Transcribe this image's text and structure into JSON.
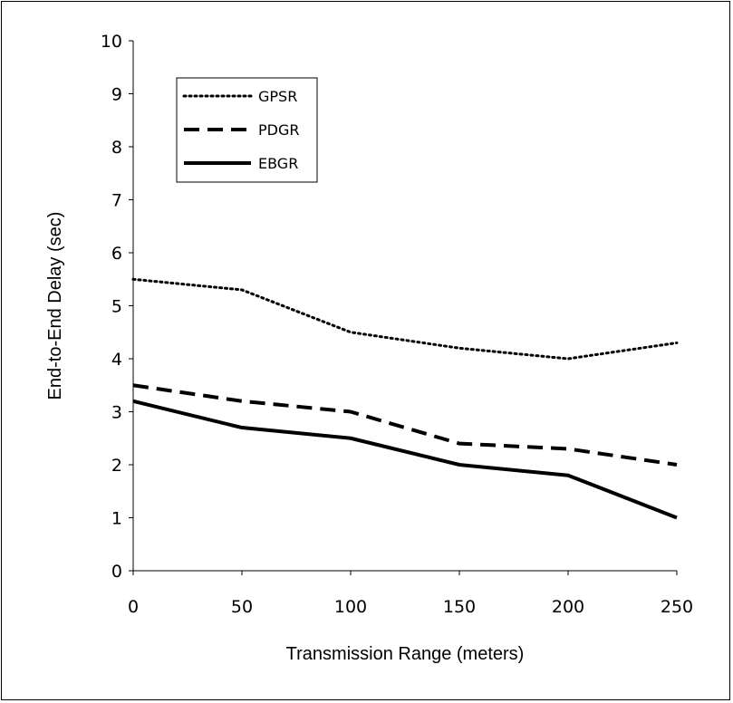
{
  "chart_data": {
    "type": "line",
    "title": "",
    "xlabel": "Transmission Range (meters)",
    "ylabel": "End-to-End Delay (sec)",
    "x": [
      0,
      50,
      100,
      150,
      200,
      250
    ],
    "xlim": [
      0,
      250
    ],
    "ylim": [
      0,
      10
    ],
    "x_ticks": [
      "0",
      "50",
      "100",
      "150",
      "200",
      "250"
    ],
    "y_ticks": [
      "0",
      "1",
      "2",
      "3",
      "4",
      "5",
      "6",
      "7",
      "8",
      "9",
      "10"
    ],
    "grid": false,
    "legend_position": "top-left",
    "series": [
      {
        "name": "GPSR",
        "values": [
          5.5,
          5.3,
          4.5,
          4.2,
          4.0,
          4.3
        ],
        "style": "dotted",
        "color": "#000000"
      },
      {
        "name": "PDGR",
        "values": [
          3.5,
          3.2,
          3.0,
          2.4,
          2.3,
          2.0
        ],
        "style": "dashed",
        "color": "#000000"
      },
      {
        "name": "EBGR",
        "values": [
          3.2,
          2.7,
          2.5,
          2.0,
          1.8,
          1.0
        ],
        "style": "solid",
        "color": "#000000"
      }
    ]
  }
}
